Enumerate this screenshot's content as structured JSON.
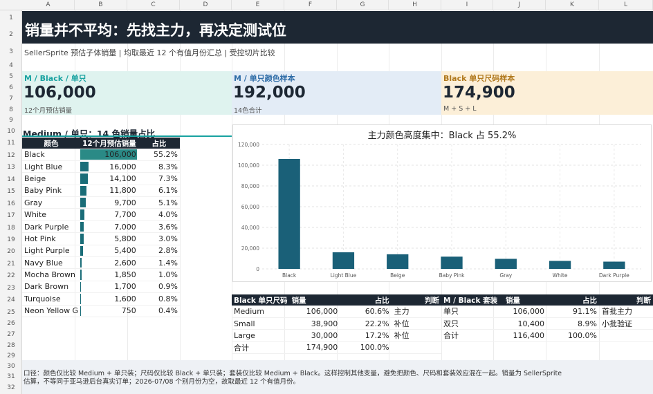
{
  "sheet": {
    "columns": [
      "A",
      "B",
      "C",
      "D",
      "E",
      "F",
      "G",
      "H",
      "I",
      "J",
      "K",
      "L"
    ],
    "rows": [
      "1",
      "2",
      "3",
      "4",
      "5",
      "6",
      "7",
      "8",
      "9",
      "10",
      "11",
      "12",
      "13",
      "14",
      "15",
      "16",
      "17",
      "18",
      "19",
      "20",
      "21",
      "22",
      "23",
      "24",
      "25",
      "26",
      "27",
      "28",
      "29",
      "30",
      "31",
      "32"
    ]
  },
  "title": "销量并不平均：先找主力，再决定测试位",
  "subtitle": "SellerSprite 预估子体销量 | 均取最近 12 个有值月份汇总 | 受控切片比较",
  "kpis": [
    {
      "label": "M / Black / 单只",
      "value": "106,000",
      "sub": "12个月预估销量",
      "bg": "#dff3ef",
      "color": "#17a2a0"
    },
    {
      "label": "M / 单只颜色样本",
      "value": "192,000",
      "sub": "14色合计",
      "bg": "#e3ecf6",
      "color": "#2d6ba6"
    },
    {
      "label": "Black 单只尺码样本",
      "value": "174,900",
      "sub": "M + S + L",
      "bg": "#fcefd8",
      "color": "#b0781c"
    }
  ],
  "color_table": {
    "section_title": "Medium / 单只：14 色销量占比",
    "headers": [
      "颜色",
      "12个月预估销量",
      "占比"
    ],
    "rows": [
      {
        "color": "Black",
        "sales": "106,000",
        "share": "55.2%",
        "frac": 0.552
      },
      {
        "color": "Light Blue",
        "sales": "16,000",
        "share": "8.3%",
        "frac": 0.083
      },
      {
        "color": "Beige",
        "sales": "14,100",
        "share": "7.3%",
        "frac": 0.073
      },
      {
        "color": "Baby Pink",
        "sales": "11,800",
        "share": "6.1%",
        "frac": 0.061
      },
      {
        "color": "Gray",
        "sales": "9,700",
        "share": "5.1%",
        "frac": 0.051
      },
      {
        "color": "White",
        "sales": "7,700",
        "share": "4.0%",
        "frac": 0.04
      },
      {
        "color": "Dark Purple",
        "sales": "7,000",
        "share": "3.6%",
        "frac": 0.036
      },
      {
        "color": "Hot Pink",
        "sales": "5,800",
        "share": "3.0%",
        "frac": 0.03
      },
      {
        "color": "Light Purple",
        "sales": "5,400",
        "share": "2.8%",
        "frac": 0.028
      },
      {
        "color": "Navy Blue",
        "sales": "2,600",
        "share": "1.4%",
        "frac": 0.014
      },
      {
        "color": "Mocha Brown",
        "sales": "1,850",
        "share": "1.0%",
        "frac": 0.01
      },
      {
        "color": "Dark Brown",
        "sales": "1,700",
        "share": "0.9%",
        "frac": 0.009
      },
      {
        "color": "Turquoise",
        "sales": "1,600",
        "share": "0.8%",
        "frac": 0.008
      },
      {
        "color": "Neon Yellow G",
        "sales": "750",
        "share": "0.4%",
        "frac": 0.004
      }
    ]
  },
  "chart_data": {
    "type": "bar",
    "title": "主力颜色高度集中：Black 占 55.2%",
    "categories": [
      "Black",
      "Light Blue",
      "Beige",
      "Baby Pink",
      "Gray",
      "White",
      "Dark Purple"
    ],
    "values": [
      106000,
      16000,
      14100,
      11800,
      9700,
      7700,
      7000
    ],
    "ylim": [
      0,
      120000
    ],
    "yticks": [
      "0",
      "20,000",
      "40,000",
      "60,000",
      "80,000",
      "100,000",
      "120,000"
    ],
    "grid": true,
    "bar_color": "#1a6078"
  },
  "size_table": {
    "headers": [
      "Black 单只尺码",
      "销量",
      "占比",
      "判断"
    ],
    "rows": [
      [
        "Medium",
        "106,000",
        "60.6%",
        "主力"
      ],
      [
        "Small",
        "38,900",
        "22.2%",
        "补位"
      ],
      [
        "Large",
        "30,000",
        "17.2%",
        "补位"
      ],
      [
        "合计",
        "174,900",
        "100.0%",
        ""
      ]
    ]
  },
  "pack_table": {
    "headers": [
      "M / Black 套装",
      "销量",
      "占比",
      "判断"
    ],
    "rows": [
      [
        "单只",
        "106,000",
        "91.1%",
        "首批主力"
      ],
      [
        "双只",
        "10,400",
        "8.9%",
        "小批验证"
      ],
      [
        "合计",
        "116,400",
        "100.0%",
        ""
      ]
    ]
  },
  "footnote": {
    "line1": "口径：颜色仅比较 Medium + 单只装；尺码仅比较 Black + 单只装；套装仅比较 Medium + Black。这样控制其他变量，避免把颜色、尺码和套装效应混在一起。销量为 SellerSprite",
    "line2": "估算，不等同于亚马逊后台真实订单；2026-07/08 个别月份为空，故取最近 12 个有值月份。"
  }
}
